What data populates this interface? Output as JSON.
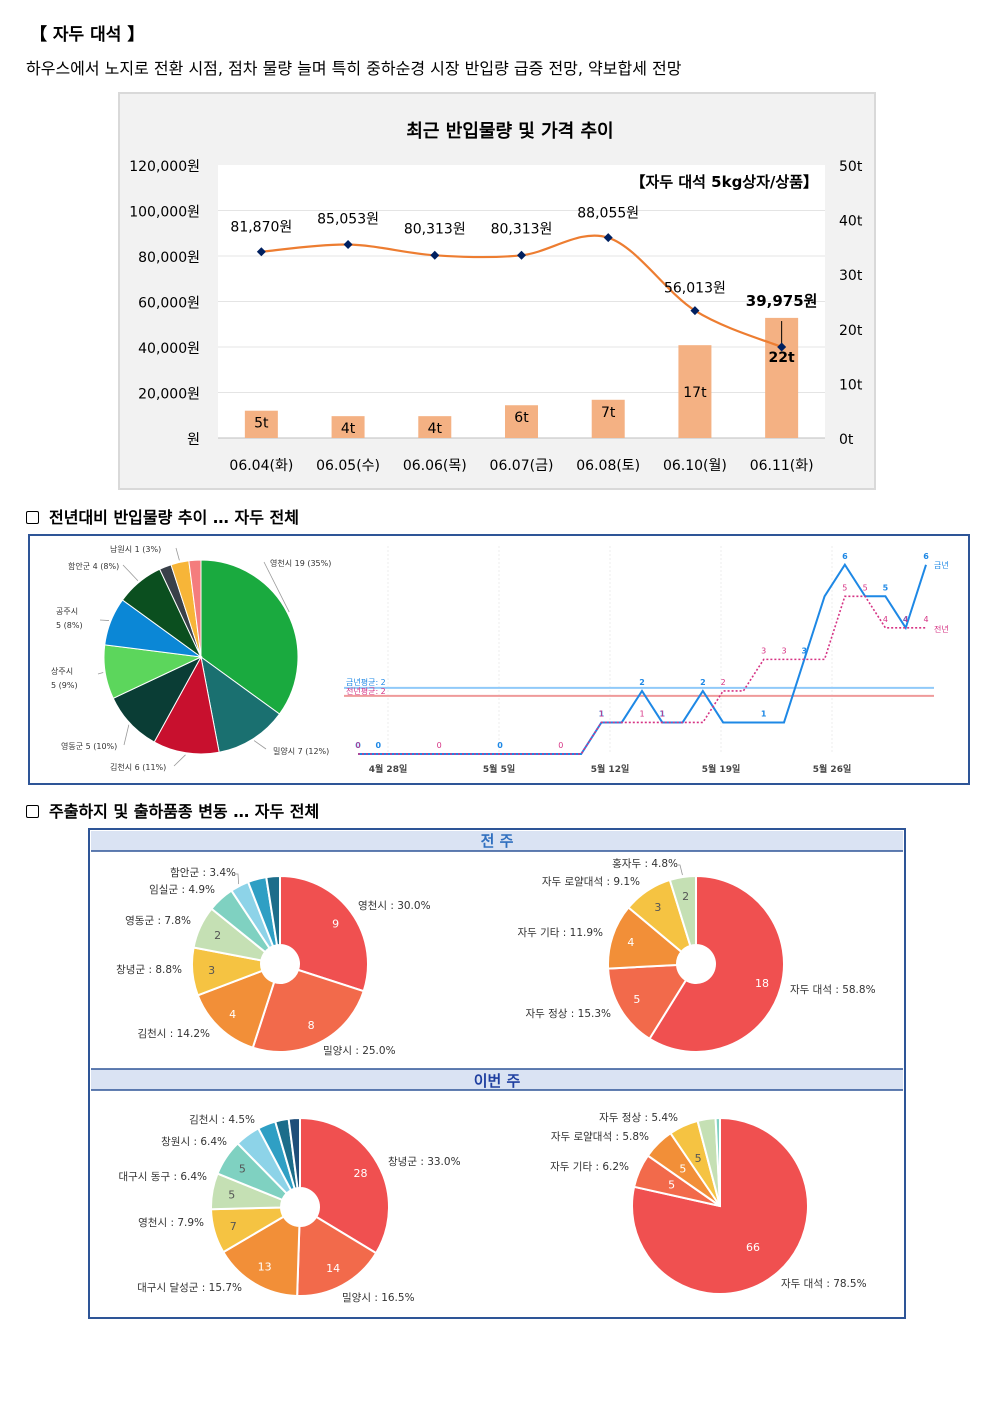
{
  "document": {
    "title": "【 자두 대석 】",
    "summary": "하우스에서 노지로 전환 시점, 점차 물량 늘며 특히 중하순경 시장 반입량 급증 전망, 약보합세 전망",
    "section2_title": "전년대비 반입물량 추이 … 자두 전체",
    "section3_title": "주출하지 및 출하품종 변동 … 자두 전체",
    "prev_week_label": "전 주",
    "this_week_label": "이번 주"
  },
  "colors": {
    "bar": "#f4b183",
    "price_line": "#ed7d31",
    "marker": "#002060",
    "this_year": "#1e88e5",
    "last_year": "#d63384",
    "avg_this_year": "#90caf9",
    "avg_last_year": "#ef9a9a",
    "panel_border": "#2e5597",
    "panel_header": "#dae3f3"
  },
  "chart_data": [
    {
      "type": "bar",
      "title": "최근 반입물량 및 가격 추이",
      "subtitle": "【자두 대석 5kg상자/상품】",
      "categories": [
        "06.04(화)",
        "06.05(수)",
        "06.06(목)",
        "06.07(금)",
        "06.08(토)",
        "06.10(월)",
        "06.11(화)"
      ],
      "series": [
        {
          "name": "반입물량",
          "type": "bar",
          "axis": "right",
          "values": [
            5,
            4,
            4,
            6,
            7,
            17,
            22
          ],
          "labels": [
            "5t",
            "4t",
            "4t",
            "6t",
            "7t",
            "17t",
            "22t"
          ]
        },
        {
          "name": "가격",
          "type": "line",
          "axis": "left",
          "values": [
            81870,
            85053,
            80313,
            80313,
            88055,
            56013,
            39975
          ],
          "labels": [
            "81,870원",
            "85,053원",
            "80,313원",
            "80,313원",
            "88,055원",
            "56,013원",
            "39,975원"
          ]
        }
      ],
      "left_ticks": [
        "120,000원",
        "100,000원",
        "80,000원",
        "60,000원",
        "40,000원",
        "20,000원",
        "원"
      ],
      "right_ticks": [
        "50t",
        "40t",
        "30t",
        "20t",
        "10t",
        "0t"
      ],
      "ylim_left": [
        0,
        120000
      ],
      "ylim_right": [
        0,
        50
      ],
      "grid": true
    },
    {
      "type": "pie",
      "slices": [
        {
          "label": "영천시 19 (35%)",
          "value": 35,
          "color": "#1aaa3f"
        },
        {
          "label": "밀양시 7 (12%)",
          "value": 12,
          "color": "#1a7070"
        },
        {
          "label": "김천시 6 (11%)",
          "value": 11,
          "color": "#c8102e"
        },
        {
          "label": "영동군 5 (10%)",
          "value": 10,
          "color": "#0a3d35"
        },
        {
          "label": "상주시\n5 (9%)",
          "value": 9,
          "color": "#5cd65c"
        },
        {
          "label": "공주시\n5 (8%)",
          "value": 8,
          "color": "#0b87d6"
        },
        {
          "label": "함안군 4 (8%)",
          "value": 8,
          "color": "#0b4f1f"
        },
        {
          "label": "",
          "value": 2,
          "color": "#394049"
        },
        {
          "label": "남원시 1 (3%)",
          "value": 3,
          "color": "#f7b538"
        },
        {
          "label": "",
          "value": 2,
          "color": "#f47d7d"
        }
      ]
    },
    {
      "type": "line",
      "x_ticks": [
        "4월 28일",
        "5월 5일",
        "5월 12일",
        "5월 19일",
        "5월 26일"
      ],
      "avg_labels": {
        "this_year": "금년평균: 2",
        "last_year": "전년평균: 2"
      },
      "averages": {
        "this_year": 2,
        "last_year": 2
      },
      "series": [
        {
          "name": "금년",
          "values": [
            0,
            0,
            0,
            0,
            0,
            0,
            0,
            0,
            0,
            0,
            0,
            0,
            1,
            1,
            2,
            1,
            1,
            2,
            1,
            1,
            1,
            1,
            3,
            5,
            6,
            5,
            5,
            4,
            6
          ],
          "labels": [
            "0",
            "0",
            "",
            "",
            "",
            "",
            "",
            "0",
            "",
            "",
            "",
            "",
            "1",
            "",
            "2",
            "1",
            "",
            "2",
            "",
            "",
            "1",
            "",
            "3",
            "",
            "6",
            "",
            "5",
            "4",
            "6"
          ]
        },
        {
          "name": "전년",
          "values": [
            0,
            0,
            0,
            0,
            0,
            0,
            0,
            0,
            0,
            0,
            0,
            0,
            1,
            1,
            1,
            1,
            1,
            1,
            2,
            2,
            3,
            3,
            3,
            3,
            5,
            5,
            4,
            4,
            4
          ],
          "labels": [
            "0",
            "",
            "",
            "",
            "0",
            "",
            "",
            "",
            "",
            "",
            "0",
            "",
            "1",
            "",
            "1",
            "1",
            "",
            "",
            "2",
            "",
            "3",
            "3",
            "",
            "",
            "5",
            "5",
            "4",
            "4",
            "4"
          ]
        }
      ],
      "ylim": [
        0,
        6.5
      ]
    },
    {
      "type": "pie",
      "name": "전 주 주출하지",
      "slices": [
        {
          "label": "영천시 : 30.0%",
          "value": 30,
          "count": "9",
          "color": "#f05050"
        },
        {
          "label": "밀양시 : 25.0%",
          "value": 25,
          "count": "8",
          "color": "#f26a4b"
        },
        {
          "label": "김천시 : 14.2%",
          "value": 14.2,
          "count": "4",
          "color": "#f28f38"
        },
        {
          "label": "창녕군 : 8.8%",
          "value": 8.8,
          "count": "3",
          "color": "#f5c342"
        },
        {
          "label": "영동군 : 7.8%",
          "value": 7.8,
          "count": "2",
          "color": "#c5e0b4"
        },
        {
          "label": "임실군 : 4.9%",
          "value": 4.9,
          "count": "",
          "color": "#7fd1c1"
        },
        {
          "label": "함안군 : 3.4%",
          "value": 3.4,
          "count": "",
          "color": "#8dd3e8"
        },
        {
          "label": "",
          "value": 3.4,
          "count": "",
          "color": "#2f9fc4"
        },
        {
          "label": "",
          "value": 2.5,
          "count": "",
          "color": "#1c6d8a"
        }
      ]
    },
    {
      "type": "pie",
      "name": "전 주 출하품종",
      "slices": [
        {
          "label": "자두 대석 : 58.8%",
          "value": 58.8,
          "count": "18",
          "color": "#f05050"
        },
        {
          "label": "자두 정상 : 15.3%",
          "value": 15.3,
          "count": "5",
          "color": "#f26a4b"
        },
        {
          "label": "자두 기타 : 11.9%",
          "value": 11.9,
          "count": "4",
          "color": "#f28f38"
        },
        {
          "label": "자두 로얄대석 : 9.1%",
          "value": 9.1,
          "count": "3",
          "color": "#f5c342"
        },
        {
          "label": "홍자두 : 4.8%",
          "value": 4.8,
          "count": "2",
          "color": "#c5e0b4"
        }
      ]
    },
    {
      "type": "pie",
      "name": "이번 주 주출하지",
      "slices": [
        {
          "label": "창녕군 : 33.0%",
          "value": 33,
          "count": "28",
          "color": "#f05050"
        },
        {
          "label": "밀양시 : 16.5%",
          "value": 16.5,
          "count": "14",
          "color": "#f26a4b"
        },
        {
          "label": "대구시 달성군 : 15.7%",
          "value": 15.7,
          "count": "13",
          "color": "#f28f38"
        },
        {
          "label": "영천시 : 7.9%",
          "value": 7.9,
          "count": "7",
          "color": "#f5c342"
        },
        {
          "label": "대구시 동구 : 6.4%",
          "value": 6.4,
          "count": "5",
          "color": "#c5e0b4"
        },
        {
          "label": "창원시 : 6.4%",
          "value": 6.4,
          "count": "5",
          "color": "#7fd1c1"
        },
        {
          "label": "김천시 : 4.5%",
          "value": 4.5,
          "count": "",
          "color": "#8dd3e8"
        },
        {
          "label": "",
          "value": 3.2,
          "count": "",
          "color": "#2f9fc4"
        },
        {
          "label": "",
          "value": 2.4,
          "count": "",
          "color": "#1c6d8a"
        },
        {
          "label": "",
          "value": 2.0,
          "count": "",
          "color": "#1f4e79"
        }
      ]
    },
    {
      "type": "pie",
      "name": "이번 주 출하품종",
      "slices": [
        {
          "label": "자두 대석 : 78.5%",
          "value": 78.5,
          "count": "66",
          "color": "#f05050"
        },
        {
          "label": "자두 기타 : 6.2%",
          "value": 6.2,
          "count": "5",
          "color": "#f26a4b"
        },
        {
          "label": "자두 로얄대석 : 5.8%",
          "value": 5.8,
          "count": "5",
          "color": "#f28f38"
        },
        {
          "label": "자두 정상 : 5.4%",
          "value": 5.4,
          "count": "5",
          "color": "#f5c342"
        },
        {
          "label": "",
          "value": 3.3,
          "count": "",
          "color": "#c5e0b4"
        },
        {
          "label": "",
          "value": 0.8,
          "count": "",
          "color": "#7fd1c1"
        }
      ]
    }
  ]
}
